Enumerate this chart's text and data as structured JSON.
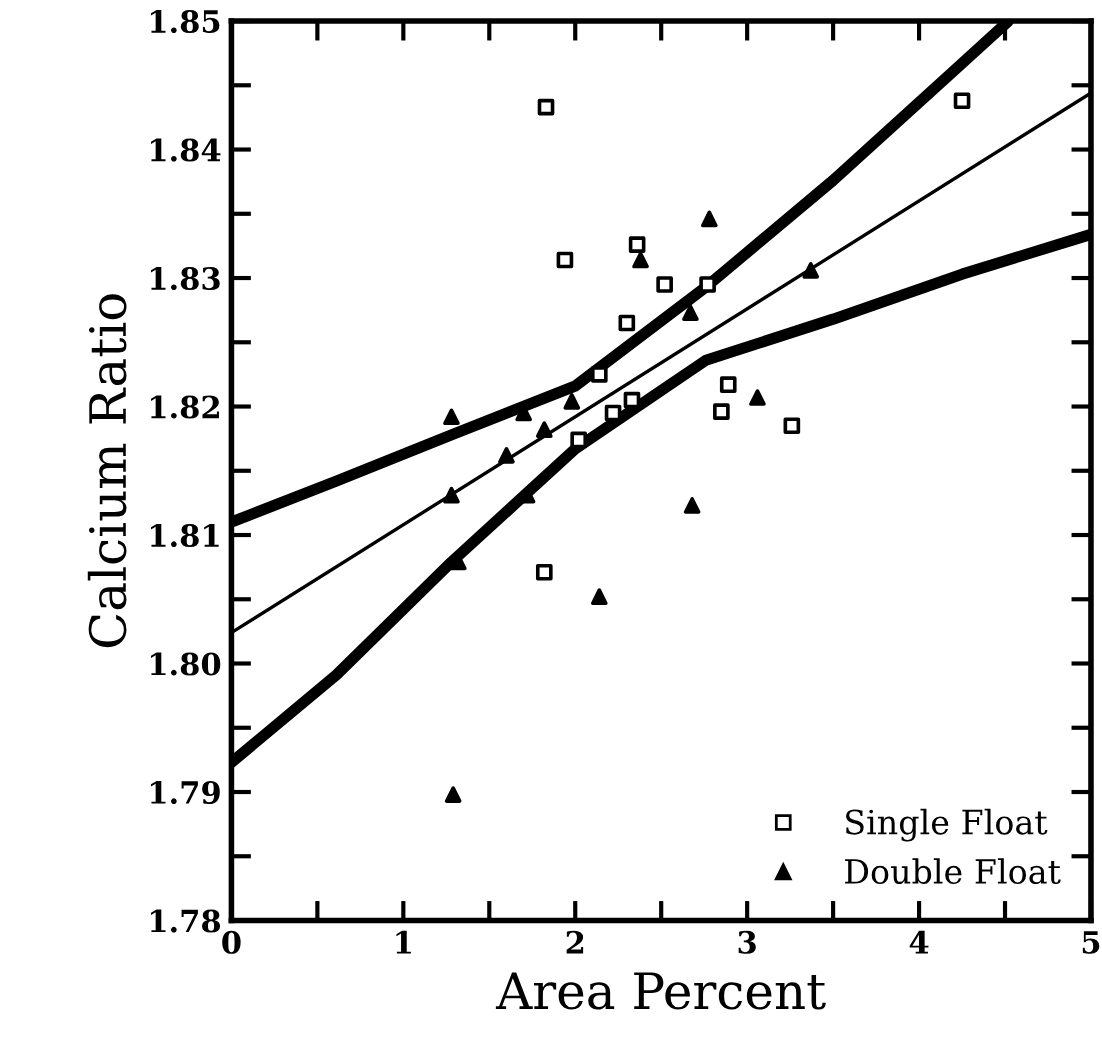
{
  "chart_data": {
    "type": "scatter",
    "xlabel": "Area Percent",
    "ylabel": "Calcium Ratio",
    "xlim": [
      0,
      5
    ],
    "ylim": [
      1.78,
      1.85
    ],
    "xticks": [
      0,
      {
        "value": 0.5,
        "label": null
      },
      1,
      {
        "value": 1.5,
        "label": null
      },
      2,
      {
        "value": 2.5,
        "label": null
      },
      3,
      {
        "value": 3.5,
        "label": null
      },
      4,
      {
        "value": 4.5,
        "label": null
      },
      5
    ],
    "yticks": [
      {
        "value": 1.78,
        "label": "1.78"
      },
      {
        "value": 1.785,
        "label": null
      },
      {
        "value": 1.79,
        "label": "1.79"
      },
      {
        "value": 1.795,
        "label": null
      },
      {
        "value": 1.8,
        "label": "1.80"
      },
      {
        "value": 1.805,
        "label": null
      },
      {
        "value": 1.81,
        "label": "1.81"
      },
      {
        "value": 1.815,
        "label": null
      },
      {
        "value": 1.82,
        "label": "1.82"
      },
      {
        "value": 1.825,
        "label": null
      },
      {
        "value": 1.83,
        "label": "1.83"
      },
      {
        "value": 1.835,
        "label": null
      },
      {
        "value": 1.84,
        "label": "1.84"
      },
      {
        "value": 1.845,
        "label": null
      },
      {
        "value": 1.85,
        "label": "1.85"
      }
    ],
    "grid": false,
    "legend": "bottom right",
    "series": [
      {
        "name": "Single Float",
        "marker": "square",
        "color": "#000000",
        "x": [
          1.83,
          4.25,
          1.94,
          2.36,
          2.52,
          2.77,
          2.3,
          2.14,
          2.89,
          2.33,
          2.22,
          2.85,
          3.26,
          2.02,
          1.82
        ],
        "values": [
          1.8433,
          1.8438,
          1.8314,
          1.8326,
          1.8295,
          1.8295,
          1.8265,
          1.8225,
          1.8217,
          1.8205,
          1.8195,
          1.8196,
          1.8185,
          1.8174,
          1.8071
        ]
      },
      {
        "name": "Double Float",
        "marker": "triangle",
        "color": "#000000",
        "x": [
          2.78,
          2.38,
          3.37,
          2.67,
          1.28,
          1.7,
          1.98,
          3.06,
          1.82,
          1.6,
          1.28,
          1.72,
          2.68,
          1.32,
          2.14,
          1.29
        ],
        "values": [
          1.8346,
          1.8314,
          1.8306,
          1.8273,
          1.8192,
          1.8195,
          1.8204,
          1.8207,
          1.8182,
          1.8162,
          1.8131,
          1.8131,
          1.8123,
          1.8079,
          1.8052,
          1.7898
        ]
      },
      {
        "type": "line",
        "marker": "none",
        "line_style": "solid",
        "color": "#000000",
        "x": [
          0,
          0.61,
          1.28,
          2,
          2.76,
          3.5,
          4.25,
          4.52
        ],
        "values": [
          1.811,
          1.8142,
          1.8178,
          1.8216,
          1.8293,
          1.8376,
          1.8467,
          1.85
        ]
      },
      {
        "type": "line",
        "marker": "none",
        "line_style": "solid",
        "color": "#000000",
        "x": [
          0,
          5
        ],
        "values": [
          1.8024,
          1.8444
        ]
      },
      {
        "type": "line",
        "marker": "none",
        "line_style": "solid",
        "color": "#000000",
        "x": [
          0,
          0.61,
          1.28,
          2,
          2.76,
          3.5,
          4.25,
          5
        ],
        "values": [
          1.7923,
          1.7991,
          1.8079,
          1.8167,
          1.8236,
          1.8268,
          1.8303,
          1.8334
        ]
      }
    ]
  }
}
